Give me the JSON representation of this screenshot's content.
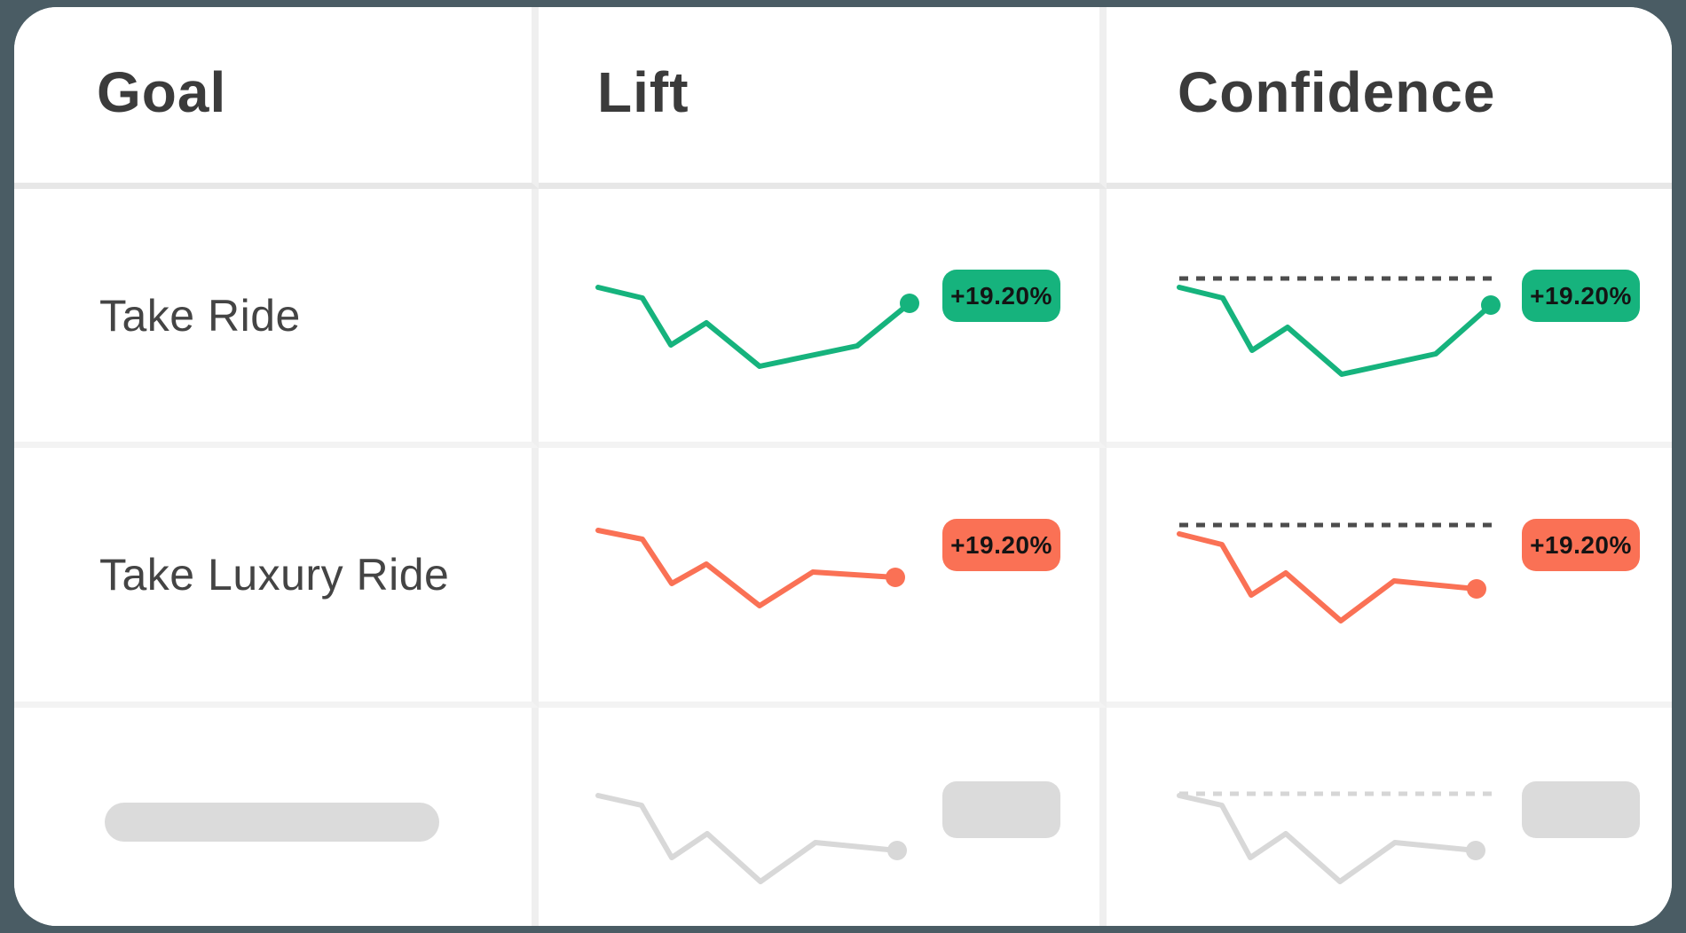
{
  "page": {
    "background_color": "#4A5C64",
    "card_background": "#FFFFFF"
  },
  "colors": {
    "positive": "#16B37D",
    "negative": "#FA7155",
    "skeleton_fill": "#DBDBDB",
    "skeleton_line": "#D8D8D8",
    "badge_text": "#141414",
    "header_text": "#3B3B3B",
    "row_text": "#444444",
    "threshold_dark": "#4D4D4D",
    "threshold_light": "#D6D6D6"
  },
  "table": {
    "columns": [
      {
        "id": "goal",
        "label": "Goal"
      },
      {
        "id": "lift",
        "label": "Lift"
      },
      {
        "id": "confidence",
        "label": "Confidence"
      }
    ],
    "rows": [
      {
        "goal_label": "Take Ride",
        "state": "loaded",
        "lift": {
          "value_label": "+19.20%",
          "trend": "positive",
          "color": "#16B37D",
          "points": [
            [
              0,
              16
            ],
            [
              50,
              28
            ],
            [
              82,
              81
            ],
            [
              122,
              56
            ],
            [
              182,
              105
            ],
            [
              292,
              82
            ],
            [
              351,
              34
            ]
          ]
        },
        "confidence": {
          "value_label": "+19.20%",
          "trend": "positive",
          "color": "#16B37D",
          "threshold": {
            "y": 6,
            "color": "#4D4D4D",
            "style": "dashed"
          },
          "points": [
            [
              0,
              16
            ],
            [
              49,
              28
            ],
            [
              82,
              87
            ],
            [
              122,
              61
            ],
            [
              183,
              114
            ],
            [
              289,
              91
            ],
            [
              351,
              36
            ]
          ]
        }
      },
      {
        "goal_label": "Take Luxury Ride",
        "state": "loaded",
        "lift": {
          "value_label": "+19.20%",
          "trend": "negative",
          "color": "#FA7155",
          "points": [
            [
              0,
              30
            ],
            [
              50,
              40
            ],
            [
              83,
              90
            ],
            [
              122,
              68
            ],
            [
              182,
              115
            ],
            [
              242,
              77
            ],
            [
              335,
              83
            ]
          ]
        },
        "confidence": {
          "value_label": "+19.20%",
          "trend": "negative",
          "color": "#FA7155",
          "threshold": {
            "y": 24,
            "color": "#4D4D4D",
            "style": "dashed"
          },
          "points": [
            [
              0,
              34
            ],
            [
              48,
              46
            ],
            [
              81,
              103
            ],
            [
              120,
              78
            ],
            [
              182,
              132
            ],
            [
              242,
              87
            ],
            [
              335,
              96
            ]
          ]
        }
      },
      {
        "goal_label": "",
        "state": "loading",
        "lift": {
          "value_label": "",
          "trend": "none",
          "color": "#D8D8D8",
          "points": [
            [
              0,
              29
            ],
            [
              49,
              40
            ],
            [
              83,
              99
            ],
            [
              123,
              72
            ],
            [
              183,
              126
            ],
            [
              245,
              82
            ],
            [
              337,
              91
            ]
          ]
        },
        "confidence": {
          "value_label": "",
          "trend": "none",
          "color": "#D8D8D8",
          "threshold": {
            "y": 27,
            "color": "#D6D6D6",
            "style": "dashed"
          },
          "points": [
            [
              0,
              29
            ],
            [
              48,
              40
            ],
            [
              80,
              99
            ],
            [
              120,
              72
            ],
            [
              181,
              126
            ],
            [
              243,
              82
            ],
            [
              334,
              91
            ]
          ]
        }
      }
    ]
  }
}
